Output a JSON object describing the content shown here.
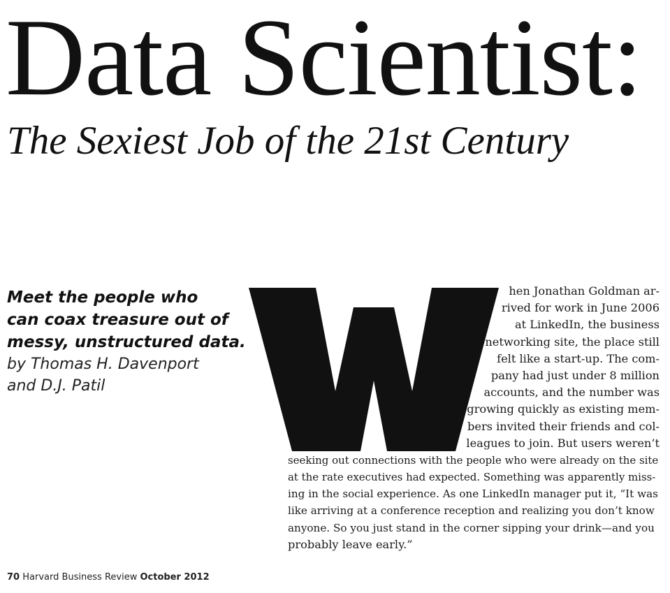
{
  "title": "Data Scientist:",
  "subtitle": "The Sexiest Job of the 21st Century",
  "deck": [
    "Meet the people who",
    "can coax treasure out of",
    "messy, unstructured data."
  ],
  "byline": [
    "by Thomas H. Davenport",
    "and D.J. Patil"
  ],
  "drop_cap": "W",
  "body_lines": [
    "hen Jonathan Goldman ar-",
    "rived for work in June 2006",
    "at LinkedIn, the business",
    "networking site, the place still",
    "felt like a start-up. The com-",
    "pany had just under 8 million",
    "accounts, and the number was",
    "growing quickly as existing mem-",
    "bers invited their friends and col-",
    "leagues to join. But users weren’t",
    "seeking out connections with the people who were already on the site",
    "at the rate executives had expected. Something was apparently miss-",
    "ing in the social experience. As one LinkedIn manager put it, “It was",
    "like arriving at a conference reception and realizing you don’t know",
    "anyone. So you just stand in the corner sipping your drink—and you",
    "probably leave early.”"
  ],
  "footer": {
    "page_number": "70",
    "publication": "Harvard Business Review",
    "issue": "October 2012"
  }
}
